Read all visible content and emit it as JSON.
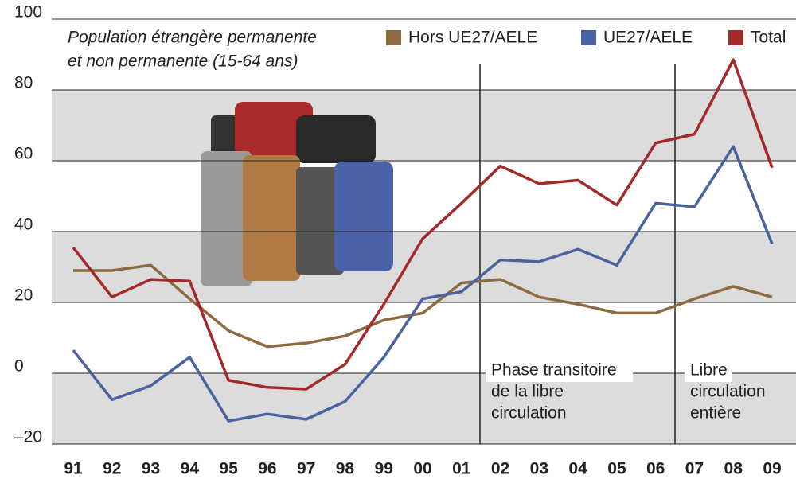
{
  "chart_data": {
    "type": "line",
    "subtitle": [
      "Population étrangère permanente",
      "et non permanente (15-64 ans)"
    ],
    "categories": [
      "91",
      "92",
      "93",
      "94",
      "95",
      "96",
      "97",
      "98",
      "99",
      "00",
      "01",
      "02",
      "03",
      "04",
      "05",
      "06",
      "07",
      "08",
      "09"
    ],
    "series": [
      {
        "name": "Hors UE27/AELE",
        "color": "#8d6a3f",
        "values": [
          29,
          29,
          30.5,
          21,
          12,
          7.5,
          8.5,
          10.5,
          15,
          17,
          25.5,
          26.5,
          21.5,
          19.5,
          17,
          17,
          21,
          24.5,
          21.5
        ]
      },
      {
        "name": "UE27/AELE",
        "color": "#4a63a0",
        "values": [
          6.5,
          -7.5,
          -3.5,
          4.5,
          -13.5,
          -11.5,
          -13,
          -8,
          4.5,
          21,
          23,
          32,
          31.5,
          35,
          30.5,
          48,
          47,
          64,
          36.5
        ]
      },
      {
        "name": "Total",
        "color": "#a3292a",
        "values": [
          35.5,
          21.5,
          26.5,
          26,
          -2,
          -4,
          -4.5,
          2.5,
          19.5,
          38,
          48,
          58.5,
          53.5,
          54.5,
          47.5,
          65,
          67.5,
          88.5,
          58
        ]
      }
    ],
    "ylim": [
      -20,
      100
    ],
    "yticks": [
      {
        "value": -20,
        "label": "–20"
      },
      0,
      20,
      40,
      60,
      80,
      100
    ],
    "annotations": [
      [
        "Phase transitoire",
        "de la libre",
        "circulation"
      ],
      [
        "Libre",
        "circulation",
        "entière"
      ]
    ]
  }
}
